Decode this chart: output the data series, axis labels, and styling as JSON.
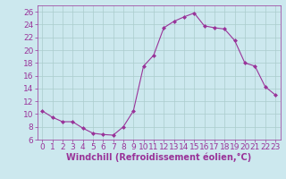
{
  "x": [
    0,
    1,
    2,
    3,
    4,
    5,
    6,
    7,
    8,
    9,
    10,
    11,
    12,
    13,
    14,
    15,
    16,
    17,
    18,
    19,
    20,
    21,
    22,
    23
  ],
  "y": [
    10.5,
    9.5,
    8.8,
    8.8,
    7.8,
    7.0,
    6.8,
    6.7,
    8.0,
    10.5,
    17.5,
    19.2,
    23.5,
    24.5,
    25.2,
    25.8,
    23.8,
    23.5,
    23.3,
    21.5,
    18.0,
    17.5,
    14.3,
    13.0
  ],
  "line_color": "#993399",
  "marker": "D",
  "marker_size": 2.0,
  "bg_color": "#cce8ee",
  "grid_color": "#aacccc",
  "xlabel": "Windchill (Refroidissement éolien,°C)",
  "xlabel_color": "#993399",
  "tick_color": "#993399",
  "spine_color": "#993399",
  "ylim": [
    6,
    27
  ],
  "xlim": [
    -0.5,
    23.5
  ],
  "yticks": [
    6,
    8,
    10,
    12,
    14,
    16,
    18,
    20,
    22,
    24,
    26
  ],
  "xticks": [
    0,
    1,
    2,
    3,
    4,
    5,
    6,
    7,
    8,
    9,
    10,
    11,
    12,
    13,
    14,
    15,
    16,
    17,
    18,
    19,
    20,
    21,
    22,
    23
  ],
  "font_size": 6.5,
  "xlabel_fontsize": 7.0,
  "line_width": 0.8
}
